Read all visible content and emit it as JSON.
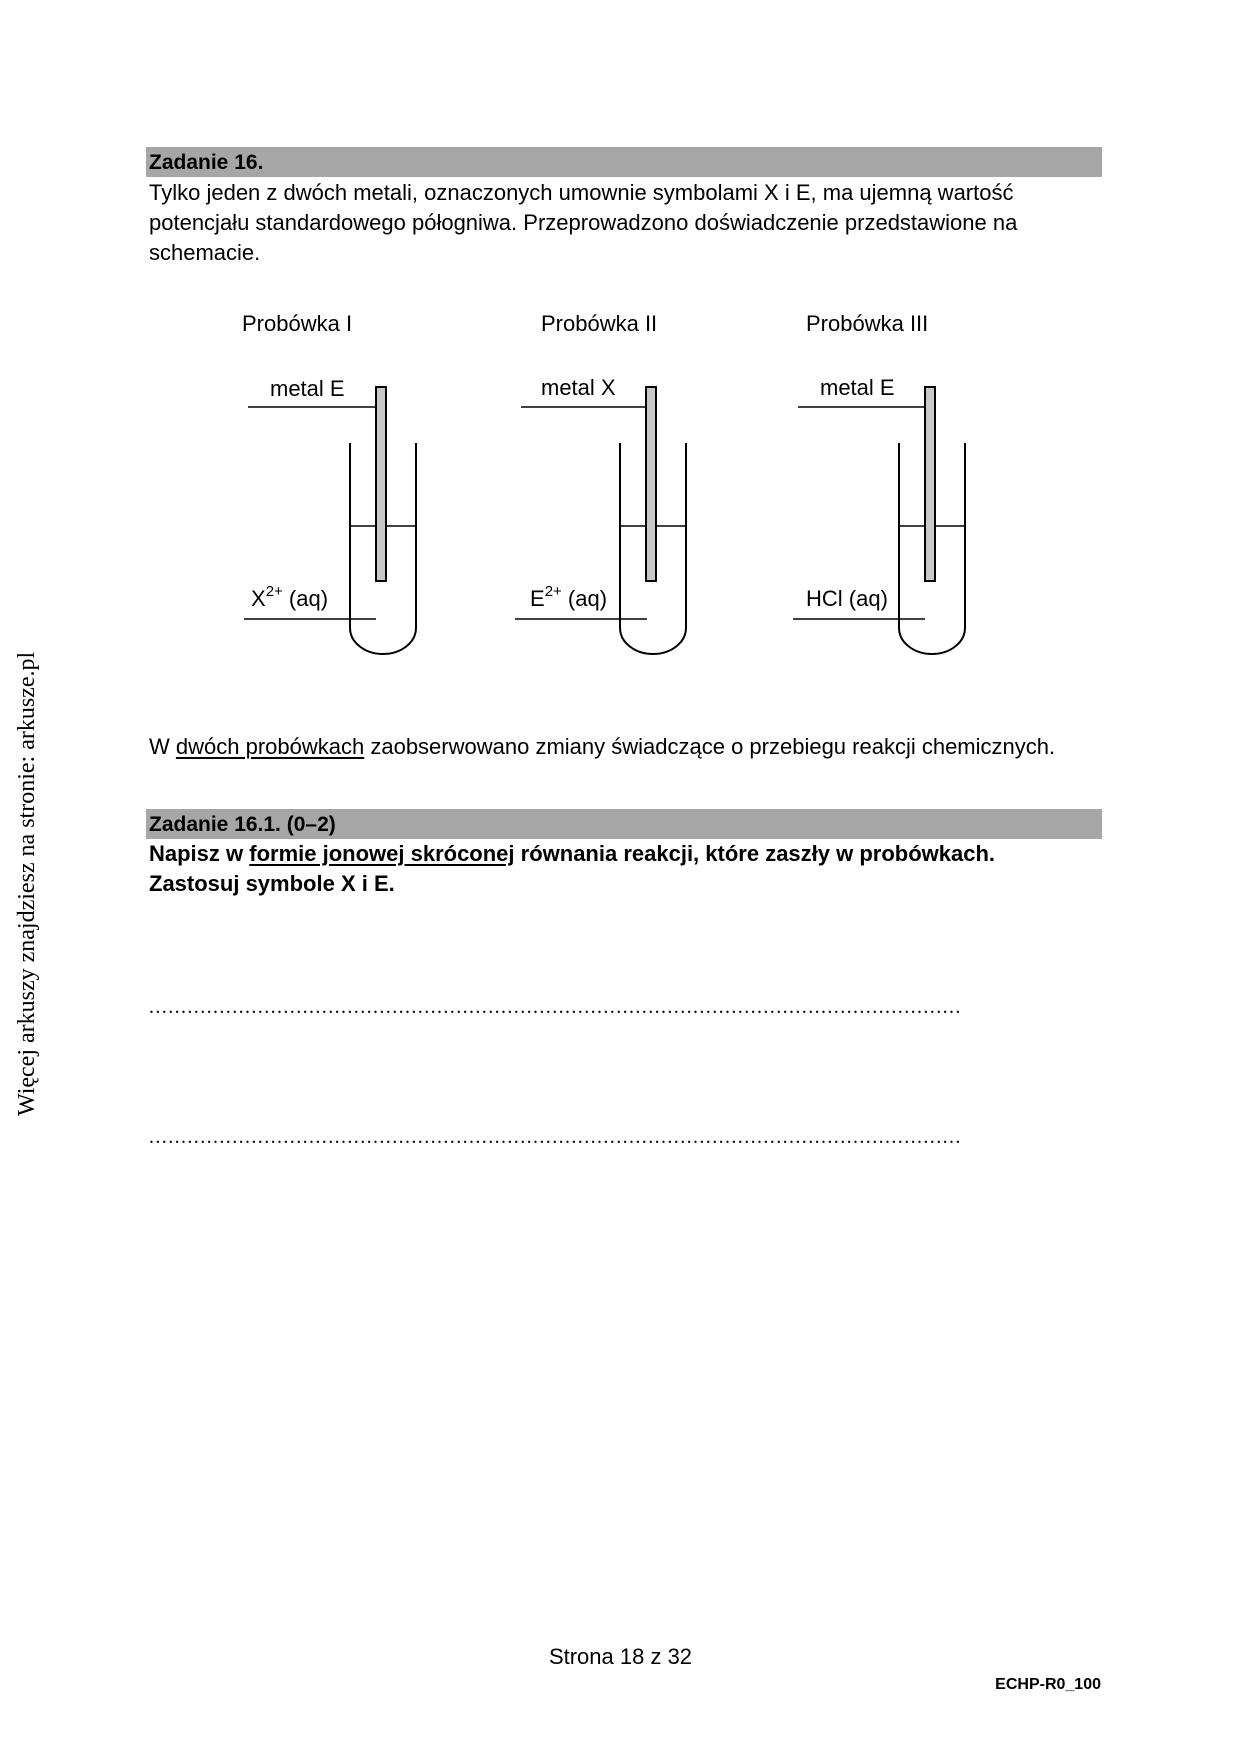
{
  "side_note": "Więcej arkuszy znajdziesz na stronie: arkusze.pl",
  "task16": {
    "header": "Zadanie 16.",
    "intro_lines": [
      "Tylko jeden z dwóch metali, oznaczonych umownie symbolami X i E, ma ujemną wartość",
      "potencjału standardowego półogniwa. Przeprowadzono doświadczenie przedstawione na",
      "schemacie."
    ]
  },
  "tubes": [
    {
      "title": "Probówka I",
      "metal": "metal E",
      "solution_main": "X",
      "solution_sup": "2+",
      "solution_rest": " (aq)"
    },
    {
      "title": "Probówka II",
      "metal": "metal X",
      "solution_main": "E",
      "solution_sup": "2+",
      "solution_rest": " (aq)"
    },
    {
      "title": "Probówka III",
      "metal": "metal E",
      "solution_main": "HCl (aq)",
      "solution_sup": "",
      "solution_rest": ""
    }
  ],
  "observation": {
    "prefix": "W ",
    "underlined": "dwóch probówkach",
    "suffix": " zaobserwowano zmiany świadczące o przebiegu reakcji chemicznych."
  },
  "task16_1": {
    "header": "Zadanie 16.1. (0–2)",
    "instruction_prefix": "Napisz w ",
    "instruction_underlined": "formie jonowej skróconej",
    "instruction_suffix": " równania reakcji, które zaszły w probówkach.",
    "instruction_line2": "Zastosuj symbole X i E."
  },
  "answer_lines": [
    "...............................................................................................................................",
    "..............................................................................................................................."
  ],
  "footer": {
    "page": "Strona 18 z 32",
    "code": "ECHP-R0_100"
  }
}
